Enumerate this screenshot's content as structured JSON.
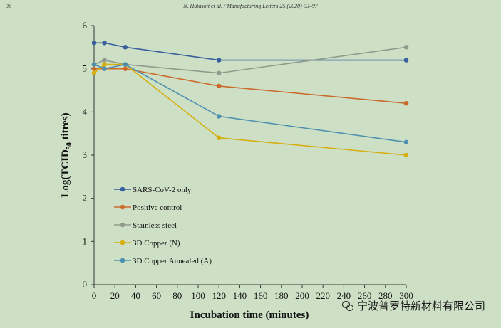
{
  "header": {
    "page_number": "96",
    "running_title": "N. Hutasoit et al. / Manufacturing Letters 25 (2020) 93–97"
  },
  "watermark": {
    "text": "宁波普罗特新材料有限公司",
    "icon": "wechat-icon"
  },
  "chart_data": {
    "type": "line",
    "title": "",
    "xlabel": "Incubation time (minutes)",
    "ylabel": "Log(TCID50 titres)",
    "ylabel_main": "Log(TCID",
    "ylabel_sub": "50",
    "ylabel_tail": " titres)",
    "xlim": [
      0,
      300
    ],
    "ylim": [
      0,
      6
    ],
    "xticks": [
      0,
      20,
      40,
      60,
      80,
      100,
      120,
      140,
      160,
      180,
      200,
      220,
      240,
      260,
      280,
      300
    ],
    "yticks": [
      0,
      1,
      2,
      3,
      4,
      5,
      6
    ],
    "grid": false,
    "legend_position": "lower-left",
    "series": [
      {
        "name": "SARS-CoV-2 only",
        "color": "#3a5f9e",
        "x": [
          0,
          10,
          30,
          120,
          300
        ],
        "y": [
          5.6,
          5.6,
          5.5,
          5.2,
          5.2
        ]
      },
      {
        "name": "Positive control",
        "color": "#cc6a2c",
        "x": [
          0,
          10,
          30,
          120,
          300
        ],
        "y": [
          5.0,
          5.0,
          5.0,
          4.6,
          4.2
        ]
      },
      {
        "name": "Stainless steel",
        "color": "#8f9a8c",
        "x": [
          0,
          10,
          30,
          120,
          300
        ],
        "y": [
          5.1,
          5.2,
          5.1,
          4.9,
          5.5
        ]
      },
      {
        "name": "3D Copper (N)",
        "color": "#d6ae10",
        "x": [
          0,
          10,
          30,
          120,
          300
        ],
        "y": [
          4.9,
          5.1,
          5.1,
          3.4,
          3.0
        ]
      },
      {
        "name": "3D Copper Annealed (A)",
        "color": "#4f8fb0",
        "x": [
          0,
          10,
          30,
          120,
          300
        ],
        "y": [
          5.1,
          5.0,
          5.1,
          3.9,
          3.3
        ]
      }
    ]
  }
}
